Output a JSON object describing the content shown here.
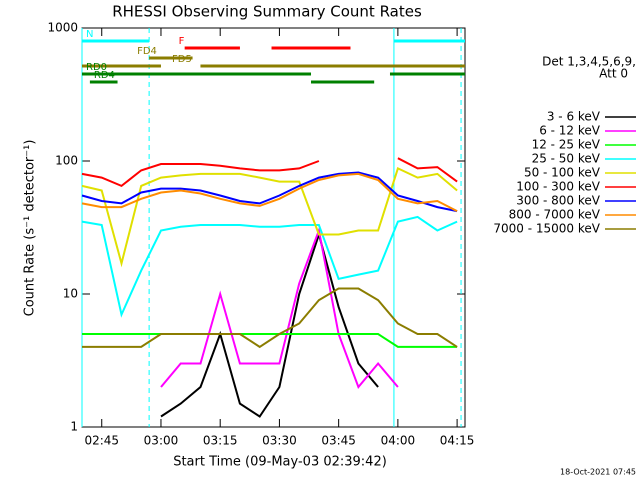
{
  "chart_data": {
    "type": "line",
    "title": "RHESSI Observing Summary Count Rates",
    "xlabel": "Start Time (09-May-03 02:39:42)",
    "ylabel": "Count Rate (s⁻¹ detector⁻¹)",
    "footer": "18-Oct-2021 07:45",
    "legend_title": [
      "Det 1,3,4,5,6,9,",
      "Att 0"
    ],
    "legend": "right",
    "ylog": true,
    "xlim": [
      "02:40",
      "04:17"
    ],
    "ylim": [
      1,
      1000
    ],
    "xticks": [
      "02:45",
      "03:00",
      "03:15",
      "03:30",
      "03:45",
      "04:00",
      "04:15"
    ],
    "yticks": [
      1,
      10,
      100,
      1000
    ],
    "x": [
      "02:40",
      "02:45",
      "02:50",
      "02:55",
      "03:00",
      "03:05",
      "03:10",
      "03:15",
      "03:20",
      "03:25",
      "03:30",
      "03:35",
      "03:40",
      "03:45",
      "03:50",
      "03:55",
      "04:00",
      "04:05",
      "04:10",
      "04:15"
    ],
    "series": [
      {
        "name": "3 - 6 keV",
        "color": "#000000",
        "values": [
          null,
          null,
          null,
          null,
          1.2,
          1.5,
          2,
          5,
          1.5,
          1.2,
          2,
          10,
          28,
          8,
          3,
          2,
          null,
          null,
          null,
          null
        ]
      },
      {
        "name": "6 - 12 keV",
        "color": "#ff00ff",
        "values": [
          null,
          null,
          null,
          null,
          2,
          3,
          3,
          10,
          3,
          3,
          3,
          12,
          30,
          5,
          2,
          3,
          2,
          null,
          null,
          null
        ]
      },
      {
        "name": "12 - 25 keV",
        "color": "#00ff00",
        "values": [
          5,
          5,
          5,
          5,
          5,
          5,
          5,
          5,
          5,
          5,
          5,
          5,
          5,
          5,
          5,
          5,
          4,
          4,
          4,
          4
        ]
      },
      {
        "name": "25 - 50 keV",
        "color": "#00ffff",
        "values": [
          35,
          33,
          7,
          15,
          30,
          32,
          33,
          33,
          33,
          32,
          32,
          33,
          33,
          13,
          14,
          15,
          35,
          38,
          30,
          35
        ]
      },
      {
        "name": "50 - 100 keV",
        "color": "#e0e000",
        "values": [
          65,
          60,
          17,
          65,
          75,
          78,
          80,
          80,
          80,
          75,
          70,
          70,
          28,
          28,
          30,
          30,
          88,
          75,
          80,
          60
        ]
      },
      {
        "name": "100 - 300 keV",
        "color": "#ff0000",
        "values": [
          80,
          75,
          65,
          85,
          95,
          95,
          95,
          92,
          88,
          85,
          85,
          88,
          100,
          null,
          null,
          null,
          105,
          88,
          90,
          70
        ]
      },
      {
        "name": "300 - 800 keV",
        "color": "#0000ff",
        "values": [
          55,
          50,
          48,
          58,
          62,
          62,
          60,
          55,
          50,
          48,
          55,
          65,
          75,
          80,
          82,
          75,
          55,
          50,
          45,
          42
        ]
      },
      {
        "name": "800 - 7000 keV",
        "color": "#ff8c00",
        "values": [
          48,
          45,
          45,
          52,
          58,
          60,
          57,
          52,
          48,
          46,
          52,
          62,
          72,
          78,
          80,
          72,
          52,
          48,
          50,
          42
        ]
      },
      {
        "name": "7000 - 15000 keV",
        "color": "#8b7d00",
        "values": [
          4,
          4,
          4,
          4,
          5,
          5,
          5,
          5,
          5,
          4,
          5,
          6,
          9,
          11,
          11,
          9,
          6,
          5,
          5,
          4
        ]
      }
    ],
    "flags": [
      {
        "name": "N",
        "color": "#00ffff",
        "segments": [
          [
            "02:40",
            "02:57"
          ],
          [
            "03:59",
            "04:17"
          ]
        ]
      },
      {
        "name": "F",
        "color": "#ff0000",
        "segments": [
          [
            "03:06",
            "03:20"
          ],
          [
            "03:28",
            "03:48"
          ]
        ]
      },
      {
        "name": "FD4",
        "color": "#8b7d00",
        "segments": [
          [
            "02:57",
            "03:08"
          ]
        ]
      },
      {
        "name": "FD5",
        "color": "#8b7d00",
        "segments": [
          [
            "02:40",
            "03:00"
          ],
          [
            "03:10",
            "04:17"
          ]
        ]
      },
      {
        "name": "RD0",
        "color": "#008000",
        "segments": [
          [
            "02:40",
            "03:38"
          ],
          [
            "03:58",
            "04:17"
          ]
        ]
      },
      {
        "name": "RD4",
        "color": "#008000",
        "segments": [
          [
            "02:42",
            "02:49"
          ],
          [
            "03:38",
            "03:54"
          ]
        ]
      }
    ],
    "markers": [
      {
        "x": "02:40",
        "style": "solid"
      },
      {
        "x": "02:57",
        "style": "dashed"
      },
      {
        "x": "03:59",
        "style": "solid"
      },
      {
        "x": "04:16",
        "style": "dashed"
      }
    ]
  }
}
